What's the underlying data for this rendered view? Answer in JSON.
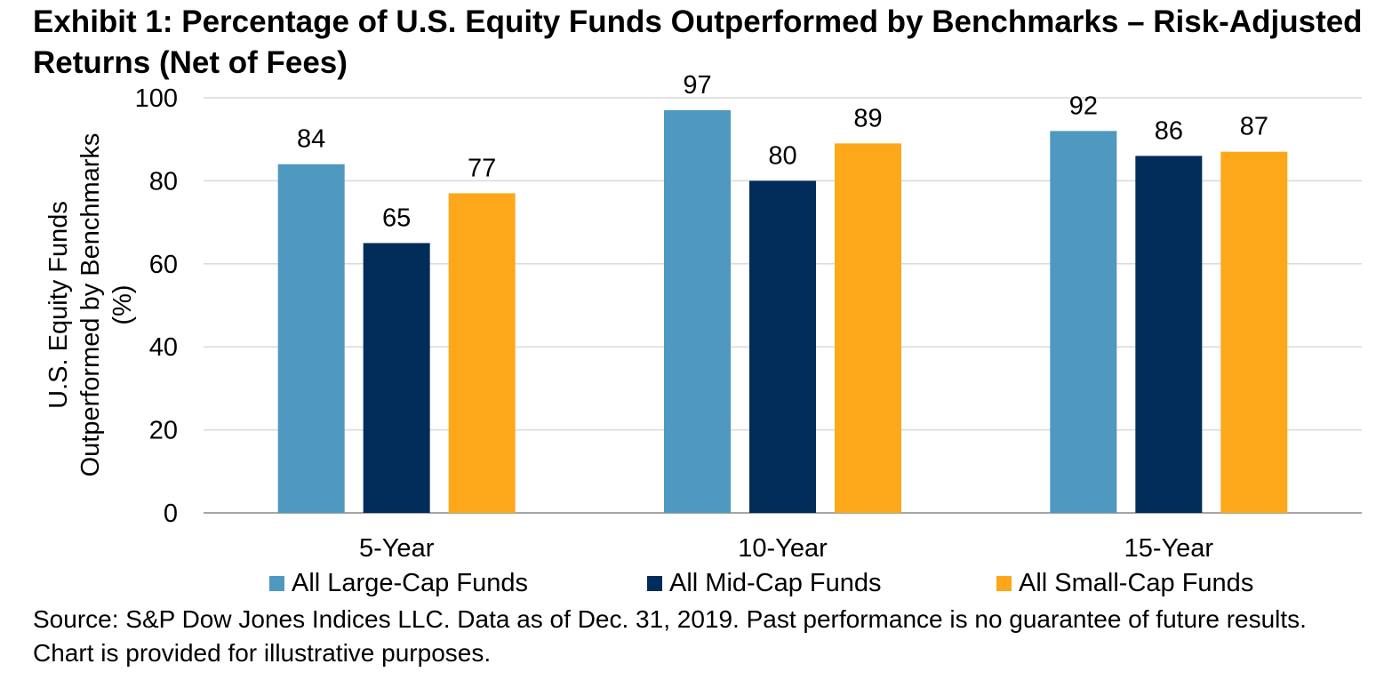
{
  "title": "Exhibit 1: Percentage of U.S. Equity Funds Outperformed by Benchmarks – Risk-Adjusted Returns (Net of Fees)",
  "source": "Source: S&P Dow Jones Indices LLC.  Data as of Dec. 31, 2019.  Past performance is no guarantee of future results.  Chart is provided for illustrative purposes.",
  "chart_data": {
    "type": "bar",
    "categories": [
      "5-Year",
      "10-Year",
      "15-Year"
    ],
    "series": [
      {
        "name": "All Large-Cap Funds",
        "color": "#4f98c0",
        "values": [
          84,
          97,
          92
        ]
      },
      {
        "name": "All Mid-Cap Funds",
        "color": "#022c5a",
        "values": [
          65,
          80,
          86
        ]
      },
      {
        "name": "All Small-Cap Funds",
        "color": "#fca81a",
        "values": [
          77,
          89,
          87
        ]
      }
    ],
    "ylabel": "U.S. Equity Funds Outperformed by Benchmarks (%)",
    "ylabel_lines": [
      "U.S. Equity Funds",
      "Outperformed by Benchmarks",
      "(%)"
    ],
    "xlabel": "",
    "ylim": [
      0,
      100
    ],
    "yticks": [
      0,
      20,
      40,
      60,
      80,
      100
    ],
    "grid": true,
    "legend": "bottom",
    "data_labels": true
  }
}
